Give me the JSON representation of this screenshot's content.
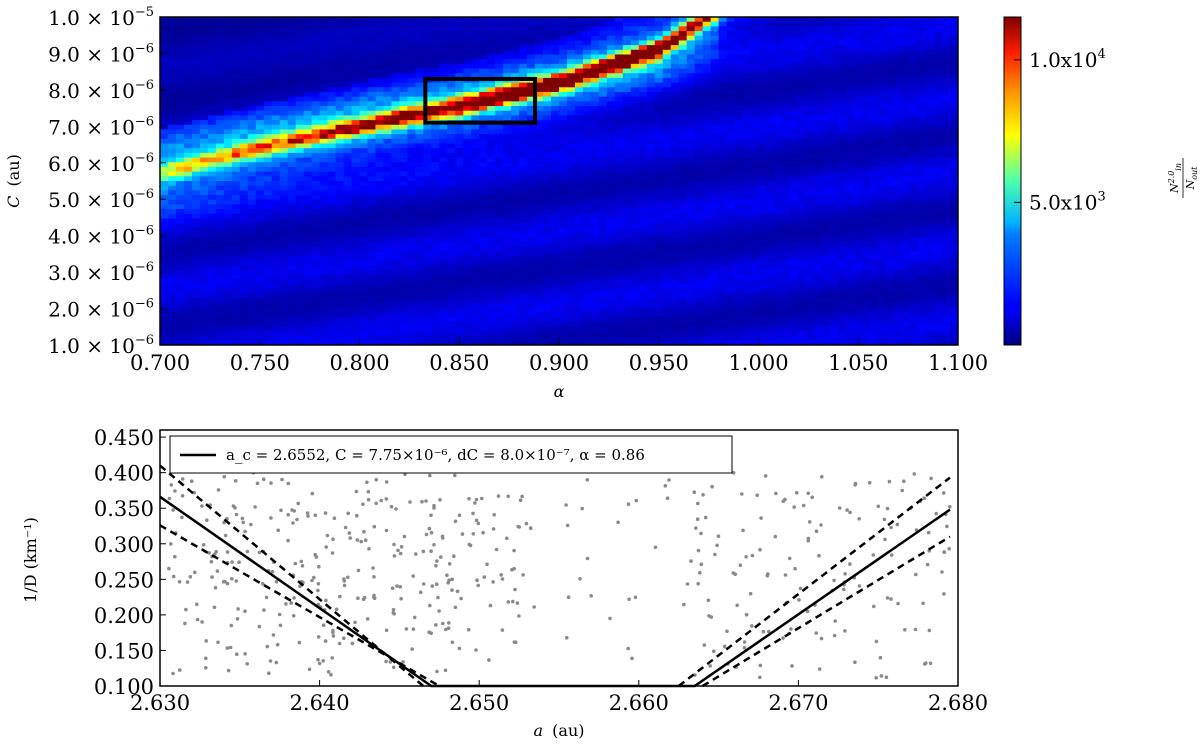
{
  "chart_data": [
    {
      "type": "heatmap",
      "xlabel": "α",
      "ylabel": "C",
      "ylabel_unit": "(au)",
      "xlim": [
        0.7,
        1.1
      ],
      "ylim": [
        1e-06,
        1e-05
      ],
      "x_ticks": [
        {
          "value": 0.7,
          "label": "0.700"
        },
        {
          "value": 0.75,
          "label": "0.750"
        },
        {
          "value": 0.8,
          "label": "0.800"
        },
        {
          "value": 0.85,
          "label": "0.850"
        },
        {
          "value": 0.9,
          "label": "0.900"
        },
        {
          "value": 0.95,
          "label": "0.950"
        },
        {
          "value": 1.0,
          "label": "1.000"
        },
        {
          "value": 1.05,
          "label": "1.050"
        },
        {
          "value": 1.1,
          "label": "1.100"
        }
      ],
      "y_ticks": [
        {
          "value": 1e-05,
          "mant": "1.0",
          "exp": "−5"
        },
        {
          "value": 9e-06,
          "mant": "9.0",
          "exp": "−6"
        },
        {
          "value": 8e-06,
          "mant": "8.0",
          "exp": "−6"
        },
        {
          "value": 7e-06,
          "mant": "7.0",
          "exp": "−6"
        },
        {
          "value": 6e-06,
          "mant": "6.0",
          "exp": "−6"
        },
        {
          "value": 5e-06,
          "mant": "5.0",
          "exp": "−6"
        },
        {
          "value": 4e-06,
          "mant": "4.0",
          "exp": "−6"
        },
        {
          "value": 3e-06,
          "mant": "3.0",
          "exp": "−6"
        },
        {
          "value": 2e-06,
          "mant": "2.0",
          "exp": "−6"
        },
        {
          "value": 1e-06,
          "mant": "1.0",
          "exp": "−6"
        }
      ],
      "grid": {
        "nx": 100,
        "ny": 70
      },
      "band": {
        "ridge": [
          [
            0.7,
            5.7e-06
          ],
          [
            0.75,
            6.4e-06
          ],
          [
            0.8,
            7e-06
          ],
          [
            0.85,
            7.55e-06
          ],
          [
            0.9,
            8.2e-06
          ],
          [
            0.95,
            9.1e-06
          ],
          [
            0.975,
            1e-05
          ]
        ],
        "peak_value": 11500,
        "width": 2.4e-07
      },
      "background_value": 800,
      "highlight_box": {
        "alpha_range": [
          0.833,
          0.888
        ],
        "C_range": [
          7.1e-06,
          8.3e-06
        ]
      },
      "colorbar": {
        "vmin": 0,
        "vmax": 11500,
        "label": "N_in^2.0 / N_out",
        "ticks": [
          {
            "value": 5000,
            "label": "5.0x10",
            "exp": "3"
          },
          {
            "value": 10000,
            "label": "1.0x10",
            "exp": "4"
          }
        ]
      }
    },
    {
      "type": "scatter",
      "xlabel": "a",
      "xlabel_unit": "(au)",
      "ylabel": "1/D (km⁻¹)",
      "xlim": [
        2.63,
        2.68
      ],
      "ylim": [
        0.1,
        0.46
      ],
      "x_ticks": [
        {
          "value": 2.63,
          "label": "2.630"
        },
        {
          "value": 2.64,
          "label": "2.640"
        },
        {
          "value": 2.65,
          "label": "2.650"
        },
        {
          "value": 2.66,
          "label": "2.660"
        },
        {
          "value": 2.67,
          "label": "2.670"
        },
        {
          "value": 2.68,
          "label": "2.680"
        }
      ],
      "y_ticks": [
        {
          "value": 0.1,
          "label": "0.100"
        },
        {
          "value": 0.15,
          "label": "0.150"
        },
        {
          "value": 0.2,
          "label": "0.200"
        },
        {
          "value": 0.25,
          "label": "0.250"
        },
        {
          "value": 0.3,
          "label": "0.300"
        },
        {
          "value": 0.35,
          "label": "0.350"
        },
        {
          "value": 0.4,
          "label": "0.400"
        },
        {
          "value": 0.45,
          "label": "0.450"
        }
      ],
      "legend": {
        "label": "a_c = 2.6552, C = 7.75×10⁻⁶, dC = 8.0×10⁻⁷, α = 0.86",
        "placement": "top-left"
      },
      "vshape_solid": {
        "points": [
          [
            2.63,
            0.366
          ],
          [
            2.647,
            0.1
          ],
          [
            2.6635,
            0.1
          ],
          [
            2.6795,
            0.348
          ]
        ]
      },
      "vshape_dashed": [
        {
          "points": [
            [
              2.63,
              0.41
            ],
            [
              2.6465,
              0.1
            ]
          ]
        },
        {
          "points": [
            [
              2.63,
              0.326
            ],
            [
              2.6475,
              0.1
            ]
          ]
        },
        {
          "points": [
            [
              2.6625,
              0.1
            ],
            [
              2.6795,
              0.393
            ]
          ]
        },
        {
          "points": [
            [
              2.664,
              0.1
            ],
            [
              2.6795,
              0.31
            ]
          ]
        }
      ],
      "point_clusters": [
        {
          "x_range": [
            2.6305,
            2.6485
          ],
          "y_range": [
            0.11,
            0.4
          ],
          "count": 270
        },
        {
          "x_range": [
            2.6485,
            2.6535
          ],
          "y_range": [
            0.13,
            0.37
          ],
          "count": 55
        },
        {
          "x_range": [
            2.6535,
            2.663
          ],
          "y_range": [
            0.13,
            0.4
          ],
          "count": 22
        },
        {
          "x_range": [
            2.663,
            2.6795
          ],
          "y_range": [
            0.11,
            0.4
          ],
          "count": 150
        }
      ],
      "point_color": "#8a8a8a"
    }
  ]
}
